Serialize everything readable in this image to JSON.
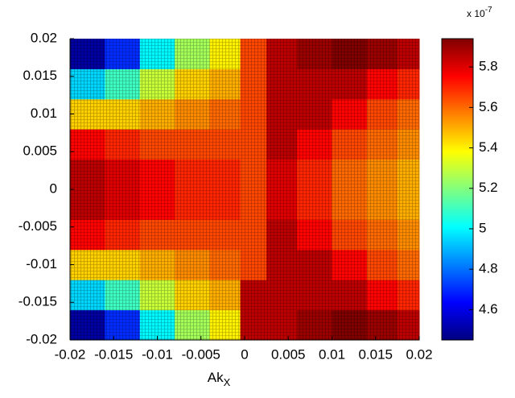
{
  "chart_data": {
    "type": "heatmap",
    "x_label": {
      "text": "Ak",
      "sub": "X"
    },
    "colorbar_exponent": {
      "base": "x 10",
      "exp": "-7"
    },
    "x": [
      -0.018,
      -0.014,
      -0.01,
      -0.006,
      -0.002,
      0.001,
      0.004,
      0.008,
      0.012,
      0.016,
      0.019
    ],
    "y": [
      -0.018,
      -0.014,
      -0.01,
      -0.006,
      -0.002,
      0.002,
      0.006,
      0.01,
      0.014,
      0.018
    ],
    "values": [
      [
        4.5,
        4.7,
        5.0,
        5.25,
        5.4,
        5.85,
        5.85,
        5.9,
        5.95,
        5.9,
        5.85
      ],
      [
        4.95,
        5.1,
        5.3,
        5.45,
        5.5,
        5.85,
        5.85,
        5.85,
        5.85,
        5.75,
        5.7
      ],
      [
        5.45,
        5.45,
        5.5,
        5.55,
        5.6,
        5.65,
        5.85,
        5.85,
        5.75,
        5.65,
        5.6
      ],
      [
        5.75,
        5.7,
        5.65,
        5.65,
        5.65,
        5.65,
        5.85,
        5.75,
        5.65,
        5.6,
        5.55
      ],
      [
        5.85,
        5.8,
        5.75,
        5.7,
        5.7,
        5.65,
        5.8,
        5.7,
        5.6,
        5.55,
        5.5
      ],
      [
        5.85,
        5.8,
        5.75,
        5.7,
        5.7,
        5.65,
        5.8,
        5.7,
        5.6,
        5.55,
        5.5
      ],
      [
        5.75,
        5.7,
        5.65,
        5.65,
        5.65,
        5.65,
        5.85,
        5.75,
        5.65,
        5.6,
        5.55
      ],
      [
        5.45,
        5.45,
        5.5,
        5.55,
        5.6,
        5.65,
        5.85,
        5.85,
        5.75,
        5.65,
        5.6
      ],
      [
        4.95,
        5.1,
        5.3,
        5.45,
        5.5,
        5.65,
        5.85,
        5.85,
        5.85,
        5.75,
        5.7
      ],
      [
        4.5,
        4.7,
        5.0,
        5.25,
        5.4,
        5.65,
        5.85,
        5.9,
        5.95,
        5.9,
        5.85
      ]
    ],
    "colormap": "jet",
    "clim": [
      4.45,
      5.94
    ],
    "cticks": [
      4.6,
      4.8,
      5,
      5.2,
      5.4,
      5.6,
      5.8
    ],
    "xlim": [
      -0.02,
      0.02
    ],
    "xticks": [
      -0.02,
      -0.015,
      -0.01,
      -0.005,
      0,
      0.005,
      0.01,
      0.015,
      0.02
    ],
    "ylim": [
      -0.02,
      0.02
    ],
    "yticks": [
      -0.02,
      -0.015,
      -0.01,
      -0.005,
      0,
      0.005,
      0.01,
      0.015,
      0.02
    ]
  }
}
